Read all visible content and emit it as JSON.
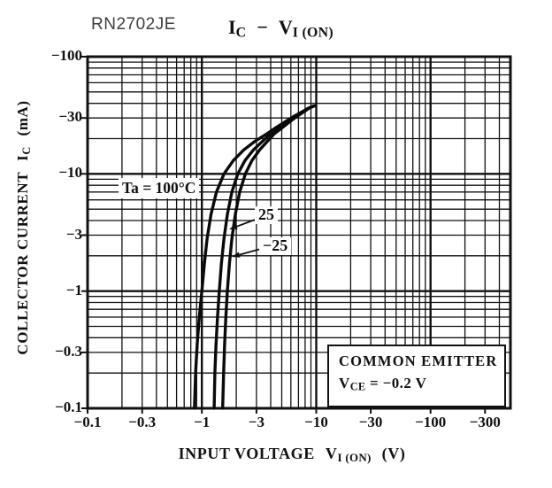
{
  "page": {
    "background": "#ffffff",
    "ink": "#111111",
    "curve_color": "#0a0a0a"
  },
  "part_label": "RN2702JE",
  "title": {
    "left_sym": "I",
    "left_sub": "C",
    "separator": "−",
    "right_sym": "V",
    "right_sub": "I (ON)"
  },
  "chart_data": {
    "type": "line",
    "title": "IC − VI(ON)",
    "x_axis": {
      "label": {
        "text": "INPUT VOLTAGE",
        "sym": "V",
        "sub": "I (ON)",
        "unit": "(V)"
      },
      "scale": "log",
      "range": [
        -0.1,
        -500
      ],
      "grid": true,
      "ticks": [
        {
          "label": "−0.1",
          "v": -0.1
        },
        {
          "label": "−0.3",
          "v": -0.3
        },
        {
          "label": "−1",
          "v": -1
        },
        {
          "label": "−3",
          "v": -3
        },
        {
          "label": "−10",
          "v": -10
        },
        {
          "label": "−30",
          "v": -30
        },
        {
          "label": "−100",
          "v": -100
        },
        {
          "label": "−300",
          "v": -300
        }
      ]
    },
    "y_axis": {
      "label": {
        "text": "COLLECTOR CURRENT",
        "sym": "I",
        "sub": "C",
        "unit": "(mA)"
      },
      "scale": "log",
      "range": [
        -0.1,
        -100
      ],
      "grid": true,
      "ticks": [
        {
          "label": "−100",
          "v": -100
        },
        {
          "label": "−30",
          "v": -30
        },
        {
          "label": "−10",
          "v": -10
        },
        {
          "label": "−3",
          "v": -3
        },
        {
          "label": "−1",
          "v": -1
        },
        {
          "label": "−0.3",
          "v": -0.3
        },
        {
          "label": "−0.1",
          "v": -0.1
        }
      ]
    },
    "series": [
      {
        "name": "Ta = 100°C",
        "temperature_c": 100,
        "points": [
          [
            -0.86,
            -0.1
          ],
          [
            -0.88,
            -0.2
          ],
          [
            -0.91,
            -0.35
          ],
          [
            -0.95,
            -0.6
          ],
          [
            -1.0,
            -1
          ],
          [
            -1.05,
            -1.7
          ],
          [
            -1.11,
            -2.8
          ],
          [
            -1.2,
            -4.5
          ],
          [
            -1.34,
            -7
          ],
          [
            -1.56,
            -10
          ],
          [
            -1.88,
            -13
          ],
          [
            -2.32,
            -16
          ],
          [
            -2.92,
            -19
          ],
          [
            -3.7,
            -22
          ],
          [
            -4.5,
            -25
          ],
          [
            -5.4,
            -28
          ],
          [
            -6.4,
            -31
          ],
          [
            -7.6,
            -34
          ],
          [
            -8.6,
            -36.5
          ],
          [
            -9.55,
            -38
          ]
        ]
      },
      {
        "name": "25",
        "temperature_c": 25,
        "points": [
          [
            -1.28,
            -0.1
          ],
          [
            -1.3,
            -0.2
          ],
          [
            -1.33,
            -0.35
          ],
          [
            -1.37,
            -0.6
          ],
          [
            -1.42,
            -1
          ],
          [
            -1.48,
            -1.7
          ],
          [
            -1.56,
            -2.8
          ],
          [
            -1.67,
            -4.5
          ],
          [
            -1.83,
            -7
          ],
          [
            -2.06,
            -10
          ],
          [
            -2.38,
            -13
          ],
          [
            -2.82,
            -16
          ],
          [
            -3.4,
            -19
          ],
          [
            -4.0,
            -22
          ],
          [
            -4.8,
            -25
          ],
          [
            -5.6,
            -28
          ],
          [
            -6.55,
            -31
          ],
          [
            -7.7,
            -34
          ],
          [
            -8.65,
            -36.5
          ],
          [
            -9.6,
            -38
          ]
        ]
      },
      {
        "name": "−25",
        "temperature_c": -25,
        "points": [
          [
            -1.52,
            -0.1
          ],
          [
            -1.55,
            -0.2
          ],
          [
            -1.58,
            -0.35
          ],
          [
            -1.62,
            -0.6
          ],
          [
            -1.67,
            -1
          ],
          [
            -1.74,
            -1.7
          ],
          [
            -1.83,
            -2.8
          ],
          [
            -1.96,
            -4.5
          ],
          [
            -2.14,
            -7
          ],
          [
            -2.4,
            -10
          ],
          [
            -2.74,
            -13
          ],
          [
            -3.2,
            -16
          ],
          [
            -3.75,
            -19
          ],
          [
            -4.3,
            -22
          ],
          [
            -5.1,
            -25
          ],
          [
            -5.9,
            -28
          ],
          [
            -6.8,
            -31
          ],
          [
            -7.85,
            -34
          ],
          [
            -8.72,
            -36.5
          ],
          [
            -9.65,
            -38
          ]
        ]
      }
    ],
    "conditions": {
      "line1": "COMMON EMITTER",
      "line2_sym": "V",
      "line2_sub": "CE",
      "line2_rest": " = −0.2 V"
    }
  }
}
